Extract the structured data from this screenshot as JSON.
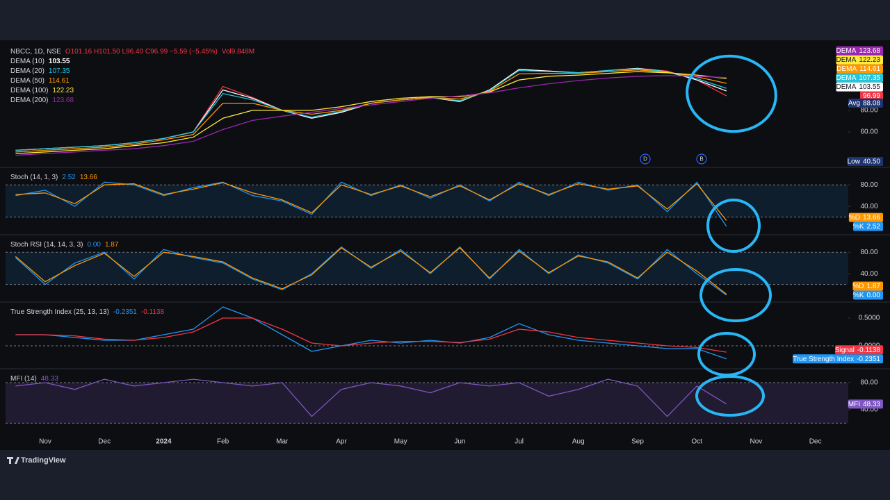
{
  "chart_data": [
    {
      "type": "line",
      "log": true,
      "quote": "O101.16 H101.50 L96.40 C96.99 −5.59 (−5.45%)",
      "volume": "Vol9.848M",
      "ylim": [
        37.8,
        196
      ],
      "yticks": [
        {
          "value": 60,
          "label": "60.00"
        },
        {
          "value": 80,
          "label": "80.00"
        }
      ],
      "series": [
        {
          "name": "NBCC, 1D, NSE",
          "color": "#f23645",
          "values": [
            47,
            48,
            49,
            50,
            52,
            55,
            60,
            110,
            95,
            80,
            72,
            78,
            88,
            92,
            95,
            90,
            105,
            138,
            135,
            132,
            136,
            140,
            135,
            120,
            96.99,
            null,
            null,
            null,
            null
          ]
        },
        {
          "name": "DEMA (10)",
          "tag": "DEMA",
          "color": "#ffffff",
          "values": [
            47,
            48,
            49,
            50,
            52,
            55,
            60,
            105,
            94,
            80,
            72,
            78,
            88,
            92,
            95,
            90,
            105,
            138,
            135,
            132,
            136,
            140,
            134,
            120,
            103.55,
            null,
            null,
            null,
            null
          ]
        },
        {
          "name": "DEMA (20)",
          "tag": "DEMA",
          "color": "#26c6da",
          "values": [
            47,
            48,
            49,
            50,
            52,
            55,
            60,
            100,
            92,
            80,
            73,
            79,
            88,
            92,
            95,
            91,
            104,
            136,
            134,
            132,
            136,
            139,
            134,
            122,
            107.35,
            null,
            null,
            null,
            null
          ]
        },
        {
          "name": "DEMA (50)",
          "tag": "DEMA",
          "color": "#ff9800",
          "values": [
            46,
            47,
            48,
            49,
            51,
            54,
            58,
            88,
            88,
            80,
            76,
            80,
            88,
            92,
            95,
            93,
            103,
            130,
            131,
            131,
            134,
            137,
            133,
            125,
            114.61,
            null,
            null,
            null,
            null
          ]
        },
        {
          "name": "DEMA (100)",
          "tag": "DEMA",
          "color": "#ffeb3b",
          "values": [
            45,
            46,
            47,
            48,
            50,
            52,
            56,
            72,
            80,
            80,
            80,
            84,
            90,
            94,
            96,
            96,
            102,
            120,
            126,
            128,
            131,
            134,
            132,
            128,
            122.23,
            null,
            null,
            null,
            null
          ]
        },
        {
          "name": "DEMA (200)",
          "tag": "DEMA",
          "color": "#9c27b0",
          "values": [
            44,
            45,
            46,
            47,
            48,
            50,
            53,
            62,
            70,
            74,
            78,
            82,
            86,
            90,
            94,
            97,
            101,
            108,
            114,
            119,
            123,
            126,
            127,
            126,
            123.68,
            null,
            null,
            null,
            null
          ]
        }
      ],
      "markers": [
        {
          "name": "Avg",
          "value": 88.08
        },
        {
          "name": "Low",
          "value": 40.5,
          "label": "40.50"
        }
      ],
      "events": [
        "D",
        "B"
      ]
    },
    {
      "type": "line",
      "title": "Stoch (14, 1, 3)",
      "ylim": [
        -9,
        110
      ],
      "yticks": [
        {
          "value": 80,
          "label": "80.00"
        },
        {
          "value": 40,
          "label": "40.00"
        }
      ],
      "levels": [
        80,
        20
      ],
      "band": "rgba(33,150,243,0.12)",
      "series": [
        {
          "name": "%K",
          "color": "#2196f3",
          "values": [
            60,
            70,
            40,
            85,
            80,
            60,
            75,
            85,
            60,
            50,
            25,
            85,
            60,
            80,
            55,
            80,
            50,
            85,
            60,
            85,
            70,
            80,
            30,
            85,
            2.52,
            null,
            null,
            null,
            null
          ]
        },
        {
          "name": "%D",
          "color": "#ff9800",
          "values": [
            62,
            65,
            45,
            80,
            82,
            62,
            72,
            84,
            65,
            52,
            28,
            80,
            62,
            78,
            58,
            78,
            52,
            82,
            62,
            82,
            72,
            78,
            35,
            82,
            13.66,
            null,
            null,
            null,
            null
          ]
        }
      ]
    },
    {
      "type": "line",
      "title": "Stoch RSI (14, 14, 3, 3)",
      "ylim": [
        -9,
        110
      ],
      "yticks": [
        {
          "value": 80,
          "label": "80.00"
        },
        {
          "value": 40,
          "label": "40.00"
        }
      ],
      "levels": [
        80,
        20
      ],
      "band": "rgba(33,150,243,0.12)",
      "series": [
        {
          "name": "%K",
          "color": "#2196f3",
          "values": [
            70,
            20,
            60,
            80,
            30,
            85,
            70,
            60,
            30,
            10,
            40,
            90,
            50,
            85,
            40,
            90,
            30,
            85,
            40,
            75,
            60,
            30,
            85,
            40,
            0,
            null,
            null,
            null,
            null
          ],
          "value_labels": [
            null,
            null,
            null,
            null,
            null,
            null,
            null,
            null,
            null,
            null,
            null,
            null,
            null,
            null,
            null,
            null,
            null,
            null,
            null,
            null,
            null,
            null,
            null,
            null,
            "0.00",
            null,
            null,
            null,
            null
          ]
        },
        {
          "name": "%D",
          "color": "#ff9800",
          "values": [
            72,
            25,
            55,
            78,
            35,
            80,
            72,
            62,
            32,
            12,
            38,
            88,
            52,
            82,
            42,
            88,
            32,
            82,
            42,
            73,
            62,
            32,
            80,
            45,
            1.87,
            null,
            null,
            null,
            null
          ]
        }
      ]
    },
    {
      "type": "line",
      "title": "True Strength Index (25, 13, 13)",
      "ylim": [
        -0.375,
        0.7625
      ],
      "yticks": [
        {
          "value": 0.5,
          "label": "0.5000"
        },
        {
          "value": 0,
          "label": "0.0000"
        }
      ],
      "levels": [
        0
      ],
      "series": [
        {
          "name": "True Strength Index",
          "color": "#2196f3",
          "values": [
            0.2,
            0.2,
            0.15,
            0.1,
            0.1,
            0.2,
            0.3,
            0.7,
            0.5,
            0.2,
            -0.1,
            0,
            0.1,
            0.05,
            0.1,
            0.05,
            0.15,
            0.4,
            0.2,
            0.1,
            0.05,
            0,
            -0.05,
            -0.05,
            -0.2351,
            null,
            null,
            null,
            null
          ]
        },
        {
          "name": "Signal",
          "color": "#f23645",
          "values": [
            0.2,
            0.2,
            0.18,
            0.12,
            0.1,
            0.15,
            0.25,
            0.5,
            0.5,
            0.3,
            0.05,
            0,
            0.05,
            0.08,
            0.08,
            0.06,
            0.12,
            0.3,
            0.25,
            0.15,
            0.1,
            0.05,
            0,
            -0.03,
            -0.1138,
            null,
            null,
            null,
            null
          ]
        }
      ]
    },
    {
      "type": "line",
      "title": "MFI (14)",
      "ylim": [
        4,
        98.5
      ],
      "yticks": [
        {
          "value": 80,
          "label": "80.00"
        },
        {
          "value": 40,
          "label": "40.00"
        }
      ],
      "levels": [
        80,
        20
      ],
      "band": "rgba(126,87,194,0.18)",
      "categories": [
        null,
        "Nov",
        null,
        "Dec",
        null,
        "2024",
        null,
        "Feb",
        null,
        "Mar",
        null,
        "Apr",
        null,
        "May",
        null,
        "Jun",
        null,
        "Jul",
        null,
        "Aug",
        null,
        "Sep",
        null,
        "Oct",
        null,
        "Nov",
        null,
        "Dec",
        null
      ],
      "series": [
        {
          "name": "MFI",
          "color": "#7e57c2",
          "values": [
            75,
            80,
            70,
            85,
            75,
            80,
            85,
            80,
            75,
            80,
            30,
            70,
            80,
            75,
            65,
            80,
            75,
            80,
            60,
            70,
            85,
            75,
            30,
            75,
            48.33,
            null,
            null,
            null,
            null
          ]
        }
      ]
    }
  ],
  "branding": "TradingView"
}
